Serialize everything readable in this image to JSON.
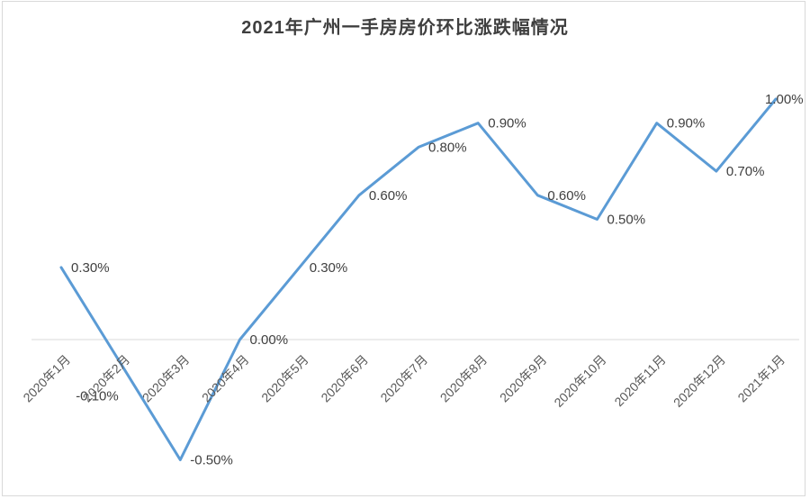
{
  "page": {
    "background_color": "#ffffff",
    "frame_border_color": "#d9d9d9"
  },
  "chart_data": {
    "type": "line",
    "title": "2021年广州一手房房价环比涨跌幅情况",
    "categories": [
      "2020年1月",
      "2020年2月",
      "2020年3月",
      "2020年4月",
      "2020年5月",
      "2020年6月",
      "2020年7月",
      "2020年8月",
      "2020年9月",
      "2020年10月",
      "2020年11月",
      "2020年12月",
      "2021年1月"
    ],
    "values": [
      0.3,
      -0.1,
      -0.5,
      0.0,
      0.3,
      0.6,
      0.8,
      0.9,
      0.6,
      0.5,
      0.9,
      0.7,
      1.0
    ],
    "data_labels": [
      "0.30%",
      "-0.10%",
      "-0.50%",
      "0.00%",
      "0.30%",
      "0.60%",
      "0.80%",
      "0.90%",
      "0.60%",
      "0.50%",
      "0.90%",
      "0.70%",
      "1.00%"
    ],
    "unit": "%",
    "xlabel": "",
    "ylabel": "",
    "ylim": [
      -0.6,
      1.1
    ],
    "grid": "zero-baseline-only",
    "legend": "none",
    "line_color": "#5b9bd5",
    "gridline_color": "#d9d9d9",
    "data_label_color": "#404040",
    "axis_label_color": "#595959",
    "x_label_rotation_deg": -45
  }
}
